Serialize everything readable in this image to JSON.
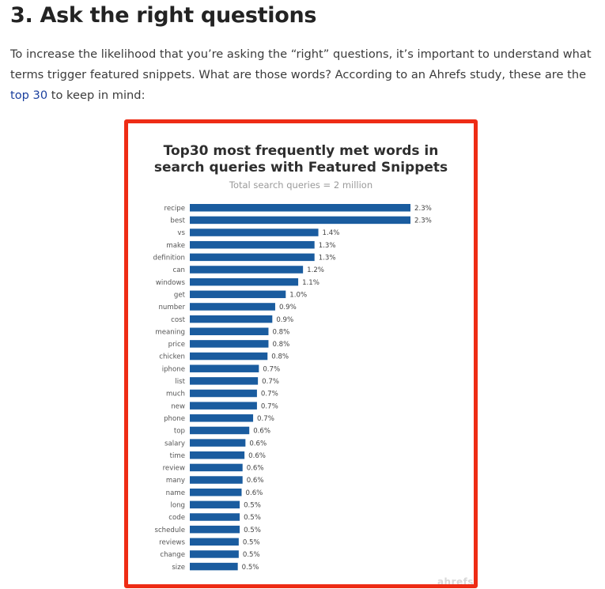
{
  "article": {
    "heading": "3. Ask the right questions",
    "intro_before": "To increase the likelihood that you’re asking the “right” questions, it’s important to understand what terms trigger featured snippets. What are those words? According to an Ahrefs study, these are the ",
    "intro_link": "top 30",
    "intro_after": " to keep in mind:"
  },
  "chart_data": {
    "type": "bar",
    "orientation": "horizontal",
    "title_line1": "Top30 most frequently met words in",
    "title_line2": "search queries with Featured Snippets",
    "subtitle": "Total search queries = 2 million",
    "watermark": "ahrefs",
    "categories": [
      "recipe",
      "best",
      "vs",
      "make",
      "definition",
      "can",
      "windows",
      "get",
      "number",
      "cost",
      "meaning",
      "price",
      "chicken",
      "iphone",
      "list",
      "much",
      "new",
      "phone",
      "top",
      "salary",
      "time",
      "review",
      "many",
      "name",
      "long",
      "code",
      "schedule",
      "reviews",
      "change",
      "size"
    ],
    "values": [
      2.3,
      2.3,
      1.4,
      1.3,
      1.3,
      1.2,
      1.1,
      1.0,
      0.9,
      0.9,
      0.8,
      0.8,
      0.8,
      0.7,
      0.7,
      0.7,
      0.7,
      0.7,
      0.6,
      0.6,
      0.6,
      0.6,
      0.6,
      0.6,
      0.5,
      0.5,
      0.5,
      0.5,
      0.5,
      0.5
    ],
    "value_labels": [
      "2.3%",
      "2.3%",
      "1.4%",
      "1.3%",
      "1.3%",
      "1.2%",
      "1.1%",
      "1.0%",
      "0.9%",
      "0.9%",
      "0.8%",
      "0.8%",
      "0.8%",
      "0.7%",
      "0.7%",
      "0.7%",
      "0.7%",
      "0.7%",
      "0.6%",
      "0.6%",
      "0.6%",
      "0.6%",
      "0.6%",
      "0.6%",
      "0.5%",
      "0.5%",
      "0.5%",
      "0.5%",
      "0.5%",
      "0.5%"
    ],
    "bar_lengths": [
      2.3,
      2.3,
      1.34,
      1.3,
      1.3,
      1.18,
      1.13,
      1.0,
      0.89,
      0.86,
      0.82,
      0.82,
      0.81,
      0.72,
      0.71,
      0.7,
      0.7,
      0.66,
      0.62,
      0.58,
      0.57,
      0.55,
      0.55,
      0.54,
      0.52,
      0.52,
      0.52,
      0.51,
      0.51,
      0.5
    ],
    "color": "#1a5c9f",
    "xlim": [
      0,
      2.3
    ],
    "grid": false,
    "legend": "none"
  }
}
